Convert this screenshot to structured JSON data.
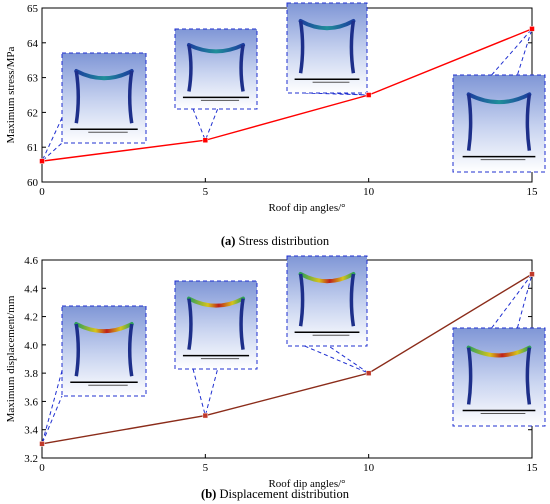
{
  "chart_data": [
    {
      "type": "line",
      "panel": "a",
      "x": [
        0,
        5,
        10,
        15
      ],
      "series": [
        {
          "name": "",
          "values": [
            60.6,
            61.2,
            62.5,
            64.4
          ],
          "color": "#ff0000"
        }
      ],
      "xlabel": "Roof dip angles/°",
      "ylabel": "Maximum stress/MPa",
      "xlim": [
        0,
        15
      ],
      "ylim": [
        60,
        65
      ],
      "xticks": [
        0,
        5,
        10,
        15
      ],
      "yticks": [
        60,
        61,
        62,
        63,
        64,
        65
      ],
      "grid": false,
      "caption_label": "(a)",
      "caption_text": " Stress distribution",
      "insets": [
        "frame contour model (0°)",
        "frame contour model (5°)",
        "frame contour model (10°)",
        "frame contour model (15°)"
      ]
    },
    {
      "type": "line",
      "panel": "b",
      "x": [
        0,
        5,
        10,
        15
      ],
      "series": [
        {
          "name": "",
          "values": [
            3.3,
            3.5,
            3.8,
            4.5
          ],
          "color": "#8b2c1a"
        }
      ],
      "xlabel": "Roof dip angles/°",
      "ylabel": "Maximum displacement/mm",
      "xlim": [
        0,
        15
      ],
      "ylim": [
        3.2,
        4.6
      ],
      "xticks": [
        0,
        5,
        10,
        15
      ],
      "yticks": [
        3.2,
        3.4,
        3.6,
        3.8,
        4.0,
        4.2,
        4.4,
        4.6
      ],
      "grid": false,
      "caption_label": "(b)",
      "caption_text": " Displacement distribution",
      "insets": [
        "frame contour model (0°)",
        "frame contour model (5°)",
        "frame contour model (10°)",
        "frame contour model (15°)"
      ]
    }
  ]
}
